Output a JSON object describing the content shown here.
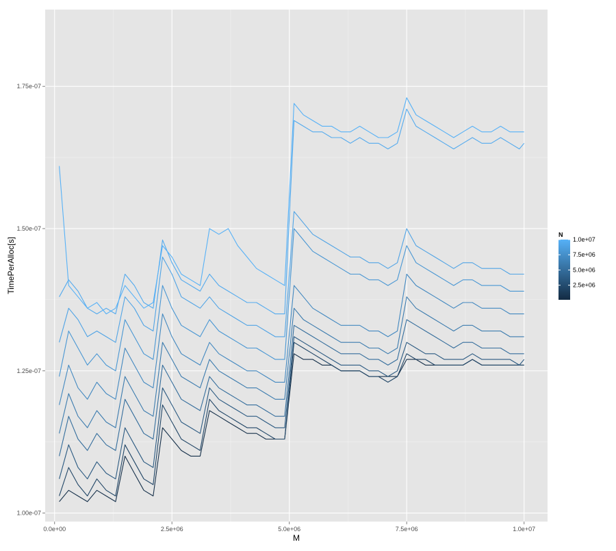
{
  "chart_data": {
    "type": "line",
    "title": "",
    "xlabel": "M",
    "ylabel": "TimePerAlloc[s]",
    "xlim": [
      -200000,
      10500000
    ],
    "ylim": [
      9.85e-08,
      1.885e-07
    ],
    "x_ticks": [
      {
        "value": 0,
        "label": "0.0e+00"
      },
      {
        "value": 2500000,
        "label": "2.5e+06"
      },
      {
        "value": 5000000,
        "label": "5.0e+06"
      },
      {
        "value": 7500000,
        "label": "7.5e+06"
      },
      {
        "value": 10000000,
        "label": "1.0e+07"
      }
    ],
    "y_ticks": [
      {
        "value": 1e-07,
        "label": "1.00e-07"
      },
      {
        "value": 1.25e-07,
        "label": "1.25e-07"
      },
      {
        "value": 1.5e-07,
        "label": "1.50e-07"
      },
      {
        "value": 1.75e-07,
        "label": "1.75e-07"
      }
    ],
    "grid": true,
    "background": "#e5e5e5",
    "legend": {
      "title": "N",
      "position": "right",
      "low_color": "#132b43",
      "high_color": "#56b1f7",
      "min": 100000,
      "max": 10000000,
      "breaks": [
        {
          "value": 10000000,
          "label": "1.0e+07"
        },
        {
          "value": 7500000,
          "label": "7.5e+06"
        },
        {
          "value": 5000000,
          "label": "5.0e+06"
        },
        {
          "value": 2500000,
          "label": "2.5e+06"
        }
      ]
    },
    "x": [
      100000,
      300000,
      500000,
      700000,
      900000,
      1100000,
      1300000,
      1500000,
      1700000,
      1900000,
      2100000,
      2300000,
      2500000,
      2700000,
      2900000,
      3100000,
      3300000,
      3500000,
      3700000,
      3900000,
      4100000,
      4300000,
      4500000,
      4700000,
      4900000,
      5100000,
      5300000,
      5500000,
      5700000,
      5900000,
      6100000,
      6300000,
      6500000,
      6700000,
      6900000,
      7100000,
      7300000,
      7500000,
      7700000,
      7900000,
      8100000,
      8300000,
      8500000,
      8700000,
      8900000,
      9100000,
      9300000,
      9500000,
      9700000,
      9900000,
      10000000
    ],
    "series": [
      {
        "N": 10000000,
        "values": [
          1.61e-07,
          1.4e-07,
          1.38e-07,
          1.36e-07,
          1.37e-07,
          1.35e-07,
          1.36e-07,
          1.4e-07,
          1.38e-07,
          1.36e-07,
          1.37e-07,
          1.47e-07,
          1.45e-07,
          1.42e-07,
          1.41e-07,
          1.4e-07,
          1.5e-07,
          1.49e-07,
          1.5e-07,
          1.47e-07,
          1.45e-07,
          1.43e-07,
          1.42e-07,
          1.41e-07,
          1.4e-07,
          1.72e-07,
          1.7e-07,
          1.69e-07,
          1.68e-07,
          1.68e-07,
          1.67e-07,
          1.67e-07,
          1.68e-07,
          1.67e-07,
          1.66e-07,
          1.66e-07,
          1.67e-07,
          1.73e-07,
          1.7e-07,
          1.69e-07,
          1.68e-07,
          1.67e-07,
          1.66e-07,
          1.67e-07,
          1.68e-07,
          1.67e-07,
          1.67e-07,
          1.68e-07,
          1.67e-07,
          1.67e-07,
          1.67e-07
        ]
      },
      {
        "N": 9500000,
        "values": [
          1.38e-07,
          1.41e-07,
          1.39e-07,
          1.36e-07,
          1.35e-07,
          1.36e-07,
          1.35e-07,
          1.42e-07,
          1.4e-07,
          1.37e-07,
          1.36e-07,
          1.48e-07,
          1.44e-07,
          1.41e-07,
          1.4e-07,
          1.39e-07,
          1.42e-07,
          1.4e-07,
          1.39e-07,
          1.38e-07,
          1.37e-07,
          1.37e-07,
          1.36e-07,
          1.35e-07,
          1.35e-07,
          1.69e-07,
          1.68e-07,
          1.67e-07,
          1.67e-07,
          1.66e-07,
          1.66e-07,
          1.65e-07,
          1.66e-07,
          1.65e-07,
          1.65e-07,
          1.64e-07,
          1.65e-07,
          1.71e-07,
          1.68e-07,
          1.67e-07,
          1.66e-07,
          1.65e-07,
          1.64e-07,
          1.65e-07,
          1.66e-07,
          1.65e-07,
          1.65e-07,
          1.66e-07,
          1.65e-07,
          1.64e-07,
          1.65e-07
        ]
      },
      {
        "N": 9000000,
        "values": [
          1.3e-07,
          1.36e-07,
          1.34e-07,
          1.31e-07,
          1.32e-07,
          1.31e-07,
          1.3e-07,
          1.38e-07,
          1.36e-07,
          1.33e-07,
          1.32e-07,
          1.45e-07,
          1.42e-07,
          1.38e-07,
          1.37e-07,
          1.36e-07,
          1.38e-07,
          1.36e-07,
          1.35e-07,
          1.34e-07,
          1.33e-07,
          1.33e-07,
          1.32e-07,
          1.31e-07,
          1.31e-07,
          1.53e-07,
          1.51e-07,
          1.49e-07,
          1.48e-07,
          1.47e-07,
          1.46e-07,
          1.45e-07,
          1.45e-07,
          1.44e-07,
          1.44e-07,
          1.43e-07,
          1.44e-07,
          1.5e-07,
          1.47e-07,
          1.46e-07,
          1.45e-07,
          1.44e-07,
          1.43e-07,
          1.44e-07,
          1.44e-07,
          1.43e-07,
          1.43e-07,
          1.43e-07,
          1.42e-07,
          1.42e-07,
          1.42e-07
        ]
      },
      {
        "N": 8000000,
        "values": [
          1.24e-07,
          1.32e-07,
          1.29e-07,
          1.26e-07,
          1.28e-07,
          1.26e-07,
          1.25e-07,
          1.34e-07,
          1.31e-07,
          1.28e-07,
          1.27e-07,
          1.4e-07,
          1.36e-07,
          1.33e-07,
          1.32e-07,
          1.31e-07,
          1.34e-07,
          1.32e-07,
          1.31e-07,
          1.3e-07,
          1.29e-07,
          1.29e-07,
          1.28e-07,
          1.27e-07,
          1.27e-07,
          1.5e-07,
          1.48e-07,
          1.46e-07,
          1.45e-07,
          1.44e-07,
          1.43e-07,
          1.42e-07,
          1.42e-07,
          1.41e-07,
          1.41e-07,
          1.4e-07,
          1.41e-07,
          1.47e-07,
          1.44e-07,
          1.43e-07,
          1.42e-07,
          1.41e-07,
          1.4e-07,
          1.41e-07,
          1.41e-07,
          1.4e-07,
          1.4e-07,
          1.4e-07,
          1.39e-07,
          1.39e-07,
          1.39e-07
        ]
      },
      {
        "N": 7000000,
        "values": [
          1.19e-07,
          1.26e-07,
          1.22e-07,
          1.2e-07,
          1.23e-07,
          1.21e-07,
          1.2e-07,
          1.29e-07,
          1.26e-07,
          1.23e-07,
          1.22e-07,
          1.35e-07,
          1.31e-07,
          1.28e-07,
          1.27e-07,
          1.26e-07,
          1.3e-07,
          1.28e-07,
          1.27e-07,
          1.26e-07,
          1.25e-07,
          1.25e-07,
          1.24e-07,
          1.23e-07,
          1.23e-07,
          1.4e-07,
          1.38e-07,
          1.36e-07,
          1.35e-07,
          1.34e-07,
          1.33e-07,
          1.33e-07,
          1.33e-07,
          1.32e-07,
          1.32e-07,
          1.31e-07,
          1.32e-07,
          1.42e-07,
          1.4e-07,
          1.39e-07,
          1.38e-07,
          1.37e-07,
          1.36e-07,
          1.37e-07,
          1.37e-07,
          1.36e-07,
          1.36e-07,
          1.36e-07,
          1.35e-07,
          1.35e-07,
          1.35e-07
        ]
      },
      {
        "N": 6000000,
        "values": [
          1.14e-07,
          1.21e-07,
          1.17e-07,
          1.15e-07,
          1.18e-07,
          1.16e-07,
          1.15e-07,
          1.24e-07,
          1.21e-07,
          1.18e-07,
          1.17e-07,
          1.3e-07,
          1.27e-07,
          1.24e-07,
          1.23e-07,
          1.22e-07,
          1.27e-07,
          1.25e-07,
          1.24e-07,
          1.23e-07,
          1.22e-07,
          1.22e-07,
          1.21e-07,
          1.2e-07,
          1.2e-07,
          1.36e-07,
          1.34e-07,
          1.33e-07,
          1.32e-07,
          1.31e-07,
          1.3e-07,
          1.3e-07,
          1.3e-07,
          1.29e-07,
          1.29e-07,
          1.28e-07,
          1.29e-07,
          1.38e-07,
          1.36e-07,
          1.35e-07,
          1.34e-07,
          1.33e-07,
          1.32e-07,
          1.33e-07,
          1.33e-07,
          1.32e-07,
          1.32e-07,
          1.32e-07,
          1.31e-07,
          1.31e-07,
          1.31e-07
        ]
      },
      {
        "N": 5000000,
        "values": [
          1.1e-07,
          1.17e-07,
          1.13e-07,
          1.11e-07,
          1.14e-07,
          1.12e-07,
          1.11e-07,
          1.2e-07,
          1.17e-07,
          1.14e-07,
          1.13e-07,
          1.26e-07,
          1.23e-07,
          1.2e-07,
          1.19e-07,
          1.18e-07,
          1.24e-07,
          1.22e-07,
          1.21e-07,
          1.2e-07,
          1.19e-07,
          1.19e-07,
          1.18e-07,
          1.17e-07,
          1.17e-07,
          1.33e-07,
          1.32e-07,
          1.31e-07,
          1.3e-07,
          1.29e-07,
          1.28e-07,
          1.28e-07,
          1.28e-07,
          1.27e-07,
          1.27e-07,
          1.26e-07,
          1.27e-07,
          1.34e-07,
          1.33e-07,
          1.32e-07,
          1.31e-07,
          1.3e-07,
          1.29e-07,
          1.3e-07,
          1.3e-07,
          1.29e-07,
          1.29e-07,
          1.29e-07,
          1.28e-07,
          1.28e-07,
          1.28e-07
        ]
      },
      {
        "N": 3500000,
        "values": [
          1.06e-07,
          1.12e-07,
          1.08e-07,
          1.06e-07,
          1.09e-07,
          1.07e-07,
          1.06e-07,
          1.15e-07,
          1.12e-07,
          1.09e-07,
          1.08e-07,
          1.22e-07,
          1.19e-07,
          1.16e-07,
          1.15e-07,
          1.14e-07,
          1.22e-07,
          1.2e-07,
          1.19e-07,
          1.18e-07,
          1.17e-07,
          1.17e-07,
          1.16e-07,
          1.15e-07,
          1.15e-07,
          1.31e-07,
          1.3e-07,
          1.29e-07,
          1.28e-07,
          1.27e-07,
          1.26e-07,
          1.26e-07,
          1.26e-07,
          1.25e-07,
          1.25e-07,
          1.24e-07,
          1.25e-07,
          1.3e-07,
          1.29e-07,
          1.28e-07,
          1.28e-07,
          1.27e-07,
          1.27e-07,
          1.27e-07,
          1.28e-07,
          1.27e-07,
          1.27e-07,
          1.27e-07,
          1.27e-07,
          1.26e-07,
          1.27e-07
        ]
      },
      {
        "N": 2000000,
        "values": [
          1.03e-07,
          1.08e-07,
          1.05e-07,
          1.03e-07,
          1.06e-07,
          1.04e-07,
          1.03e-07,
          1.12e-07,
          1.09e-07,
          1.06e-07,
          1.05e-07,
          1.19e-07,
          1.16e-07,
          1.13e-07,
          1.12e-07,
          1.11e-07,
          1.2e-07,
          1.18e-07,
          1.17e-07,
          1.16e-07,
          1.15e-07,
          1.15e-07,
          1.14e-07,
          1.13e-07,
          1.13e-07,
          1.3e-07,
          1.29e-07,
          1.28e-07,
          1.27e-07,
          1.26e-07,
          1.25e-07,
          1.25e-07,
          1.25e-07,
          1.24e-07,
          1.24e-07,
          1.23e-07,
          1.24e-07,
          1.28e-07,
          1.27e-07,
          1.27e-07,
          1.26e-07,
          1.26e-07,
          1.26e-07,
          1.26e-07,
          1.27e-07,
          1.26e-07,
          1.26e-07,
          1.26e-07,
          1.26e-07,
          1.26e-07,
          1.26e-07
        ]
      },
      {
        "N": 500000,
        "values": [
          1.02e-07,
          1.04e-07,
          1.03e-07,
          1.02e-07,
          1.04e-07,
          1.03e-07,
          1.02e-07,
          1.1e-07,
          1.07e-07,
          1.04e-07,
          1.03e-07,
          1.15e-07,
          1.13e-07,
          1.11e-07,
          1.1e-07,
          1.1e-07,
          1.18e-07,
          1.17e-07,
          1.16e-07,
          1.15e-07,
          1.14e-07,
          1.14e-07,
          1.13e-07,
          1.13e-07,
          1.13e-07,
          1.28e-07,
          1.27e-07,
          1.27e-07,
          1.26e-07,
          1.26e-07,
          1.25e-07,
          1.25e-07,
          1.25e-07,
          1.24e-07,
          1.24e-07,
          1.24e-07,
          1.24e-07,
          1.27e-07,
          1.27e-07,
          1.26e-07,
          1.26e-07,
          1.26e-07,
          1.26e-07,
          1.26e-07,
          1.27e-07,
          1.26e-07,
          1.26e-07,
          1.26e-07,
          1.26e-07,
          1.26e-07,
          1.26e-07
        ]
      }
    ]
  }
}
